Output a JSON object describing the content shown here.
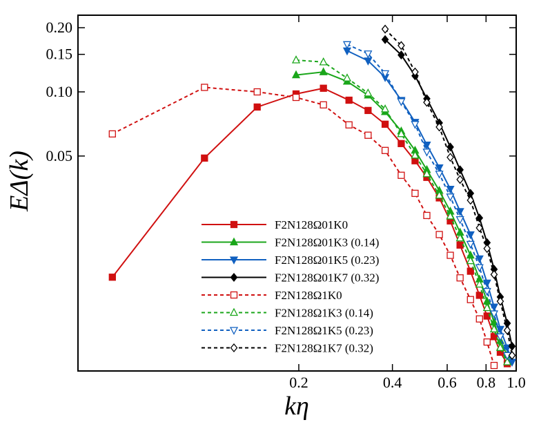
{
  "chart_data": {
    "type": "line",
    "xlabel": "kη",
    "ylabel": "EΔ(k)",
    "xscale": "log",
    "yscale": "log",
    "xlim": [
      0.039,
      1.0
    ],
    "ylim": [
      0.0049,
      0.229
    ],
    "xticks": [
      0.2,
      0.4,
      0.6,
      0.8,
      {
        "value": 1.0,
        "label": "1.0"
      }
    ],
    "yticks": [
      {
        "value": 0.2,
        "label": "0.20"
      },
      0.15,
      {
        "value": 0.1,
        "label": "0.10"
      },
      0.05
    ],
    "series": [
      {
        "name": "F2N128Ω01K0",
        "color": "#d01010",
        "dash": false,
        "marker": "square",
        "filled": true,
        "x": [
          0.0503,
          0.0995,
          0.147,
          0.196,
          0.24,
          0.29,
          0.334,
          0.379,
          0.427,
          0.473,
          0.516,
          0.566,
          0.614,
          0.66,
          0.713,
          0.762,
          0.806,
          0.849,
          0.889,
          0.936
        ],
        "values": [
          0.0135,
          0.0489,
          0.0849,
          0.0978,
          0.104,
          0.0914,
          0.0818,
          0.0705,
          0.0572,
          0.0475,
          0.0397,
          0.0318,
          0.0248,
          0.0191,
          0.0144,
          0.0111,
          0.00887,
          0.0071,
          0.006,
          0.0053
        ]
      },
      {
        "name": "F2N128Ω01K3 (0.14)",
        "color": "#1aa61a",
        "dash": false,
        "marker": "triangle-up",
        "filled": true,
        "x": [
          0.196,
          0.24,
          0.286,
          0.334,
          0.379,
          0.427,
          0.473,
          0.516,
          0.566,
          0.614,
          0.66,
          0.713,
          0.762,
          0.806,
          0.849,
          0.889,
          0.936
        ],
        "values": [
          0.12,
          0.124,
          0.112,
          0.0964,
          0.0806,
          0.0654,
          0.0531,
          0.0431,
          0.0344,
          0.0275,
          0.0219,
          0.0171,
          0.0132,
          0.0104,
          0.0083,
          0.0068,
          0.0058
        ]
      },
      {
        "name": "F2N128Ω01K5 (0.23)",
        "color": "#1060c0",
        "dash": false,
        "marker": "triangle-down",
        "filled": true,
        "x": [
          0.286,
          0.334,
          0.379,
          0.427,
          0.473,
          0.516,
          0.566,
          0.614,
          0.66,
          0.713,
          0.762,
          0.806,
          0.849,
          0.889,
          0.936,
          0.97
        ],
        "values": [
          0.156,
          0.14,
          0.117,
          0.0914,
          0.0721,
          0.0564,
          0.0441,
          0.035,
          0.0275,
          0.0214,
          0.0165,
          0.0127,
          0.0098,
          0.0077,
          0.0063,
          0.0054
        ]
      },
      {
        "name": "F2N128Ω01K7 (0.32)",
        "color": "#000000",
        "dash": false,
        "marker": "diamond",
        "filled": true,
        "x": [
          0.379,
          0.427,
          0.473,
          0.516,
          0.566,
          0.614,
          0.66,
          0.713,
          0.762,
          0.806,
          0.849,
          0.889,
          0.936,
          0.97
        ],
        "values": [
          0.176,
          0.149,
          0.119,
          0.0929,
          0.0715,
          0.0551,
          0.0431,
          0.0334,
          0.0256,
          0.0196,
          0.0147,
          0.0109,
          0.0082,
          0.0064
        ]
      },
      {
        "name": "F2N128Ω1K0",
        "color": "#d01010",
        "dash": true,
        "marker": "square",
        "filled": false,
        "x": [
          0.0503,
          0.0995,
          0.147,
          0.196,
          0.24,
          0.29,
          0.334,
          0.379,
          0.427,
          0.473,
          0.516,
          0.566,
          0.614,
          0.66,
          0.713,
          0.762,
          0.806,
          0.849
        ],
        "values": [
          0.0635,
          0.105,
          0.1,
          0.0942,
          0.0869,
          0.07,
          0.0626,
          0.0531,
          0.0406,
          0.0334,
          0.0263,
          0.0214,
          0.0171,
          0.0134,
          0.0106,
          0.0086,
          0.0067,
          0.0052
        ]
      },
      {
        "name": "F2N128Ω1K3 (0.14)",
        "color": "#1aa61a",
        "dash": true,
        "marker": "triangle-up",
        "filled": false,
        "x": [
          0.196,
          0.24,
          0.286,
          0.334,
          0.379,
          0.427,
          0.473,
          0.516,
          0.566,
          0.614,
          0.66,
          0.713,
          0.762,
          0.806,
          0.849,
          0.889,
          0.936
        ],
        "values": [
          0.141,
          0.138,
          0.116,
          0.0986,
          0.083,
          0.0635,
          0.0504,
          0.0412,
          0.0327,
          0.0261,
          0.0206,
          0.0161,
          0.0125,
          0.0097,
          0.0077,
          0.0063,
          0.0054
        ]
      },
      {
        "name": "F2N128Ω1K5 (0.23)",
        "color": "#1060c0",
        "dash": true,
        "marker": "triangle-down",
        "filled": false,
        "x": [
          0.286,
          0.334,
          0.379,
          0.427,
          0.473,
          0.516,
          0.566,
          0.614,
          0.66,
          0.713,
          0.762,
          0.806,
          0.849,
          0.889,
          0.936
        ],
        "values": [
          0.167,
          0.151,
          0.122,
          0.0901,
          0.0705,
          0.0523,
          0.0412,
          0.0322,
          0.0252,
          0.0193,
          0.015,
          0.0116,
          0.0091,
          0.0071,
          0.0058
        ]
      },
      {
        "name": "F2N128Ω1K7 (0.32)",
        "color": "#000000",
        "dash": true,
        "marker": "diamond",
        "filled": false,
        "x": [
          0.379,
          0.427,
          0.473,
          0.516,
          0.566,
          0.614,
          0.66,
          0.713,
          0.762,
          0.806,
          0.849,
          0.889,
          0.936,
          0.97
        ],
        "values": [
          0.197,
          0.165,
          0.124,
          0.0893,
          0.0684,
          0.0493,
          0.0388,
          0.031,
          0.023,
          0.0184,
          0.0139,
          0.0104,
          0.0076,
          0.0058
        ]
      }
    ]
  }
}
